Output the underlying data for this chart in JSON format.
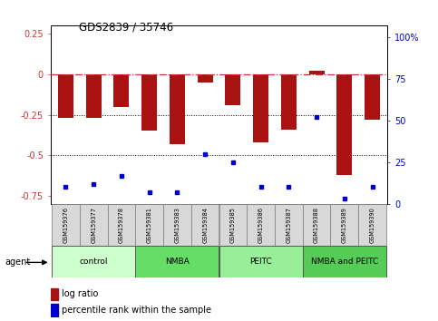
{
  "title": "GDS2839 / 35746",
  "samples": [
    "GSM159376",
    "GSM159377",
    "GSM159378",
    "GSM159381",
    "GSM159383",
    "GSM159384",
    "GSM159385",
    "GSM159386",
    "GSM159387",
    "GSM159388",
    "GSM159389",
    "GSM159390"
  ],
  "log_ratio": [
    -0.27,
    -0.27,
    -0.2,
    -0.35,
    -0.43,
    -0.05,
    -0.19,
    -0.42,
    -0.34,
    0.02,
    -0.62,
    -0.28
  ],
  "percentile_rank": [
    10,
    12,
    17,
    7,
    7,
    30,
    25,
    10,
    10,
    52,
    3,
    10
  ],
  "groups": [
    {
      "label": "control",
      "start": 0,
      "end": 3,
      "color": "#ccffcc"
    },
    {
      "label": "NMBA",
      "start": 3,
      "end": 6,
      "color": "#66dd66"
    },
    {
      "label": "PEITC",
      "start": 6,
      "end": 9,
      "color": "#99ee99"
    },
    {
      "label": "NMBA and PEITC",
      "start": 9,
      "end": 12,
      "color": "#55cc55"
    }
  ],
  "bar_color": "#aa1111",
  "dot_color": "#0000cc",
  "ref_line_color": "#cc3333",
  "ylim_left": [
    -0.8,
    0.3
  ],
  "ylim_right": [
    0,
    107
  ],
  "yticks_left": [
    -0.75,
    -0.5,
    -0.25,
    0,
    0.25
  ],
  "yticks_right": [
    0,
    25,
    50,
    75,
    100
  ],
  "ytick_labels_right": [
    "0",
    "25",
    "50",
    "75",
    "100%"
  ],
  "bar_width": 0.55,
  "xlim": [
    -0.55,
    11.55
  ]
}
